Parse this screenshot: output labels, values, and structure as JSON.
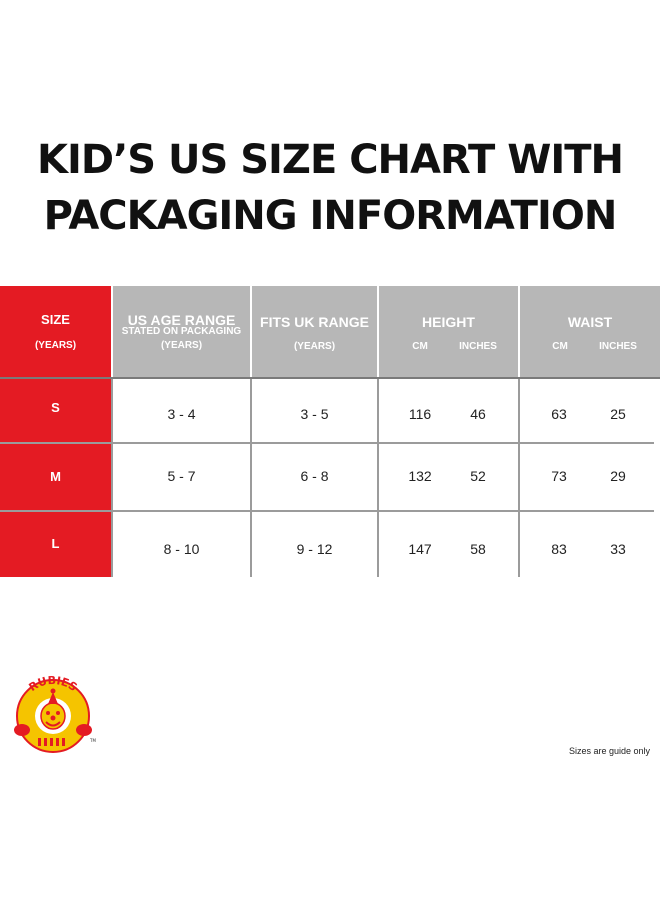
{
  "title": {
    "line1": "KID’S US SIZE CHART WITH",
    "line2": "PACKAGING INFORMATION"
  },
  "table": {
    "headers": {
      "size": {
        "main": "SIZE",
        "sub": "(YEARS)"
      },
      "us_age": {
        "main": "US AGE RANGE",
        "sub1": "STATED ON PACKAGING",
        "sub2": "(YEARS)"
      },
      "uk": {
        "main": "FITS UK RANGE",
        "sub": "(YEARS)"
      },
      "height": {
        "main": "HEIGHT",
        "cm": "CM",
        "inches": "INCHES"
      },
      "waist": {
        "main": "WAIST",
        "cm": "CM",
        "inches": "INCHES"
      }
    },
    "rows": [
      {
        "size": "S",
        "us_age": "3 - 4",
        "uk": "3 - 5",
        "height_cm": "116",
        "height_in": "46",
        "waist_cm": "63",
        "waist_in": "25"
      },
      {
        "size": "M",
        "us_age": "5 - 7",
        "uk": "6 - 8",
        "height_cm": "132",
        "height_in": "52",
        "waist_cm": "73",
        "waist_in": "29"
      },
      {
        "size": "L",
        "us_age": "8 - 10",
        "uk": "9 - 12",
        "height_cm": "147",
        "height_in": "58",
        "waist_cm": "83",
        "waist_in": "33"
      }
    ]
  },
  "logo": {
    "text": "RUBIES",
    "trademark": "TM",
    "colors": {
      "yellow": "#f5c400",
      "red": "#e41b23"
    }
  },
  "footer": {
    "note": "Sizes are guide only"
  }
}
